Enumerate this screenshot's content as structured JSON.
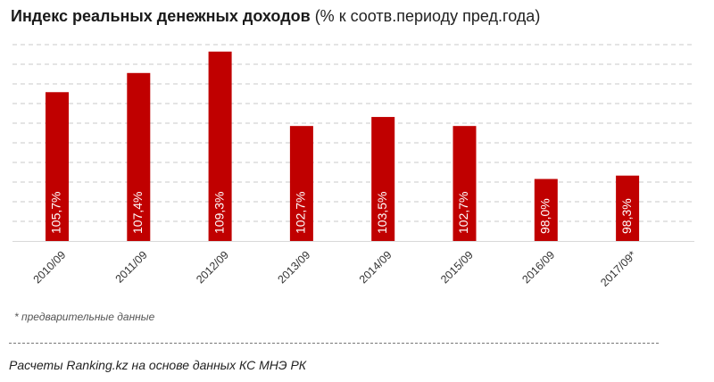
{
  "title": {
    "bold": "Индекс реальных денежных доходов",
    "normal": " (% к соотв.периоду пред.года)"
  },
  "chart_data": {
    "type": "bar",
    "categories": [
      "2010/09",
      "2011/09",
      "2012/09",
      "2013/09",
      "2014/09",
      "2015/09",
      "2016/09",
      "2017/09*"
    ],
    "values": [
      105.7,
      107.4,
      109.3,
      102.7,
      103.5,
      102.7,
      98.0,
      98.3
    ],
    "labels": [
      "105,7%",
      "107,4%",
      "109,3%",
      "102,7%",
      "103,5%",
      "102,7%",
      "98,0%",
      "98,3%"
    ],
    "ylim": [
      92.5,
      111.5
    ],
    "bar_color": "#c00000",
    "grid": true,
    "xlabel": "",
    "ylabel": ""
  },
  "footnote": "* предварительные данные",
  "source": "Расчеты Ranking.kz на основе данных  КС МНЭ РК"
}
